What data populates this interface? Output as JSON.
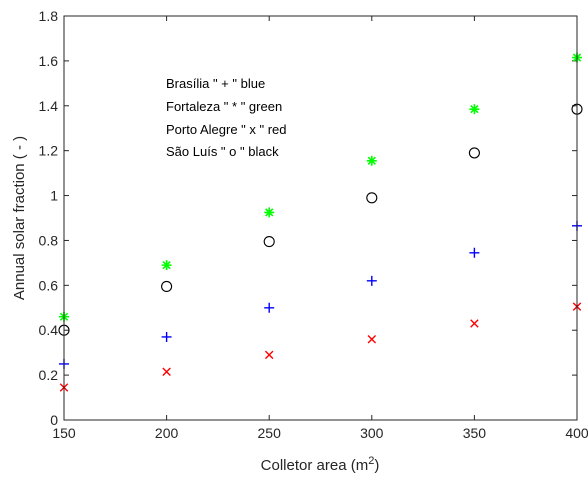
{
  "chart_data": {
    "type": "scatter",
    "title": "",
    "xlabel": "Colletor area (m",
    "xlabel_sup": "2",
    "xlabel_end": ")",
    "ylabel": "Annual solar fraction ( - )",
    "xlim": [
      150,
      400
    ],
    "ylim": [
      0,
      1.8
    ],
    "xticks": [
      150,
      200,
      250,
      300,
      350,
      400
    ],
    "yticks": [
      0,
      0.2,
      0.4,
      0.6,
      0.8,
      1,
      1.2,
      1.4,
      1.6,
      1.8
    ],
    "grid": false,
    "x": [
      150,
      200,
      250,
      300,
      350,
      400
    ],
    "series": [
      {
        "city": "Brasília",
        "marker": "+",
        "color": "#0000ff",
        "values": [
          0.25,
          0.37,
          0.5,
          0.62,
          0.745,
          0.865
        ]
      },
      {
        "city": "Fortaleza",
        "marker": "*",
        "color": "#00ff00",
        "values": [
          0.46,
          0.69,
          0.925,
          1.155,
          1.385,
          1.615
        ]
      },
      {
        "city": "Porto Alegre",
        "marker": "x",
        "color": "#ff0000",
        "values": [
          0.145,
          0.215,
          0.29,
          0.36,
          0.43,
          0.505
        ]
      },
      {
        "city": "São Luís",
        "marker": "o",
        "color": "#000000",
        "values": [
          0.4,
          0.595,
          0.795,
          0.99,
          1.19,
          1.385
        ]
      }
    ],
    "annotations": [
      "Brasília  \" + \" blue",
      "Fortaleza  \" * \" green",
      "Porto Alegre  \" x \"  red",
      "São Luís  \" o \" black"
    ]
  }
}
